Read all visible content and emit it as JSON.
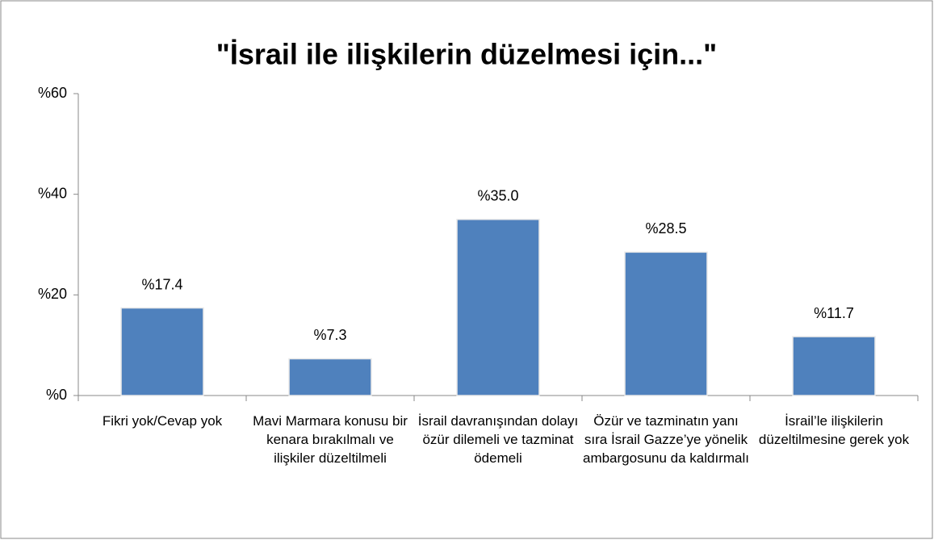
{
  "chart_data": {
    "type": "bar",
    "title": "\"İsrail ile ilişkilerin düzelmesi için...\"",
    "categories": [
      "Fikri yok/Cevap yok",
      "Mavi Marmara konusu bir kenara bırakılmalı ve ilişkiler düzeltilmeli",
      "İsrail davranışından dolayı özür dilemeli ve tazminat ödemeli",
      "Özür ve tazminatın yanı sıra İsrail Gazze’ye yönelik ambargosunu da kaldırmalı",
      "İsrail’le ilişkilerin düzeltilmesine gerek yok"
    ],
    "values": [
      17.4,
      7.3,
      35.0,
      28.5,
      11.7
    ],
    "value_labels": [
      "%17.4",
      "%7.3",
      "%35.0",
      "%28.5",
      "%11.7"
    ],
    "color": "#4f81bd",
    "ylim": [
      0,
      60
    ],
    "yticks": [
      {
        "value": 0,
        "label": "%0"
      },
      {
        "value": 20,
        "label": "%20"
      },
      {
        "value": 40,
        "label": "%40"
      },
      {
        "value": 60,
        "label": "%60"
      }
    ],
    "grid": false
  }
}
